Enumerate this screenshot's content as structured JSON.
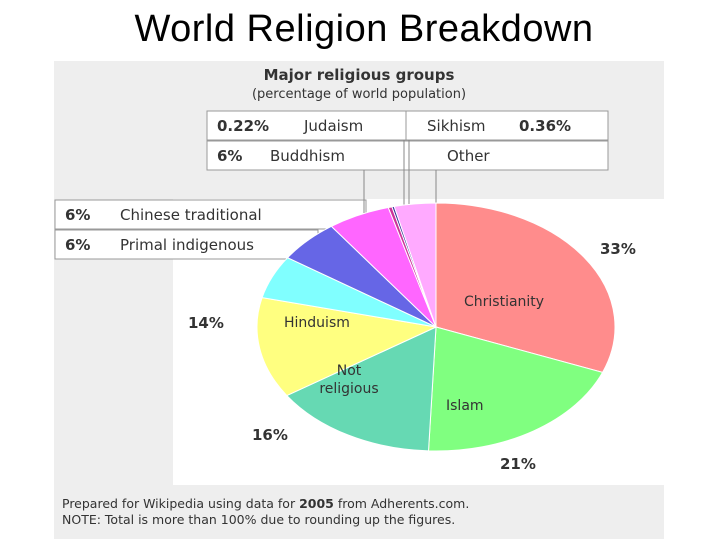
{
  "slide": {
    "title": "World Religion Breakdown"
  },
  "chart_data": {
    "type": "pie",
    "title": "Major religious groups",
    "subtitle": "(percentage of world population)",
    "unit": "%",
    "slices": [
      {
        "label": "Christianity",
        "display": "33%",
        "value": 33,
        "color": "#ff8c8c"
      },
      {
        "label": "Islam",
        "display": "21%",
        "value": 21,
        "color": "#80ff80"
      },
      {
        "label": "Not religious",
        "display": "16%",
        "value": 16,
        "color": "#66d9b3"
      },
      {
        "label": "Hinduism",
        "display": "14%",
        "value": 14,
        "color": "#ffff80"
      },
      {
        "label": "Primal indigenous",
        "display": "6%",
        "value": 6,
        "color": "#80ffff"
      },
      {
        "label": "Chinese traditional",
        "display": "6%",
        "value": 6,
        "color": "#6666e6"
      },
      {
        "label": "Buddhism",
        "display": "6%",
        "value": 6,
        "color": "#ff66ff"
      },
      {
        "label": "Sikhism",
        "display": "0.36%",
        "value": 0.36,
        "color": "#cc3399"
      },
      {
        "label": "Judaism",
        "display": "0.22%",
        "value": 0.22,
        "color": "#333399"
      },
      {
        "label": "Other",
        "display": "",
        "value": 4,
        "color": "#ffaaff"
      }
    ],
    "footnote": {
      "line1_prefix": "Prepared for Wikipedia using data for ",
      "line1_year": "2005",
      "line1_suffix": " from Adherents.com.",
      "line2": "NOTE: Total is more than 100% due to rounding up the figures."
    }
  }
}
